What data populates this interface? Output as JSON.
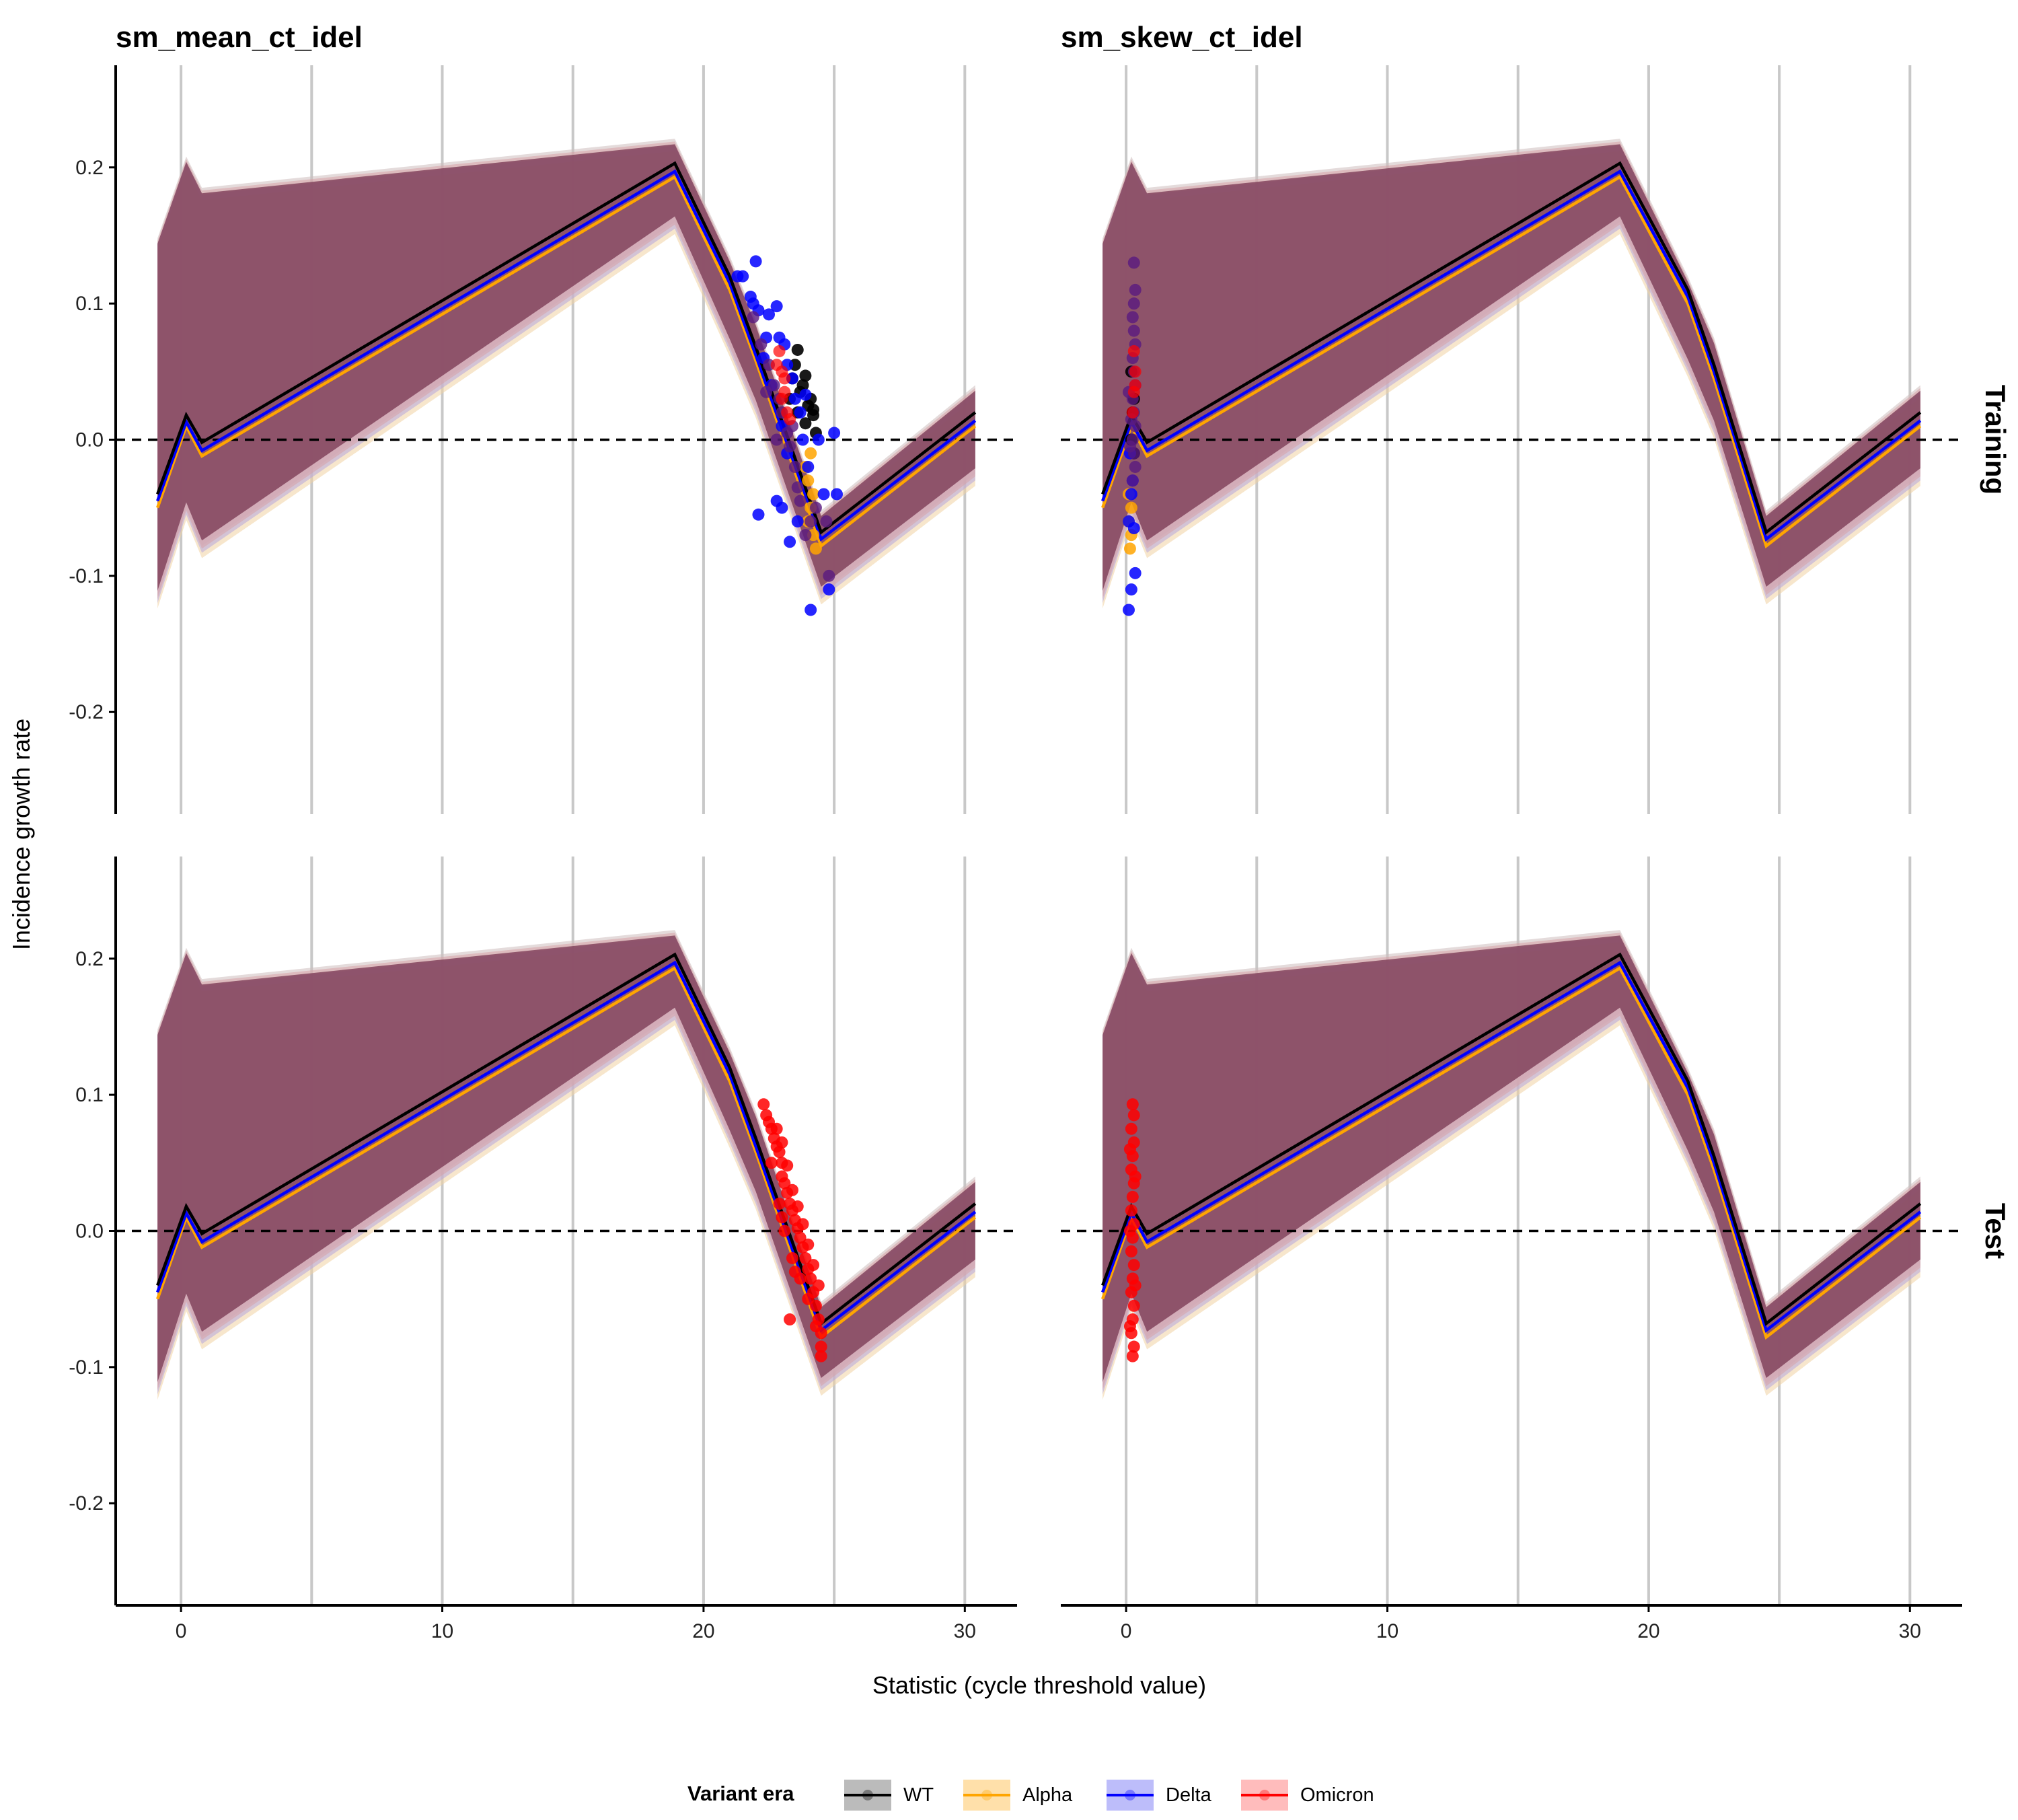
{
  "chart_data": {
    "type": "line",
    "panel_titles": [
      "sm_mean_ct_idel",
      "sm_skew_ct_idel"
    ],
    "row_strips": [
      "Training",
      "Test"
    ],
    "xlabel": "Statistic (cycle threshold value)",
    "ylabel": "Incidence growth rate",
    "xlim": [
      -2.5,
      32
    ],
    "ylim": [
      -0.275,
      0.275
    ],
    "x_ticks": [
      0,
      10,
      20,
      30
    ],
    "x_tick_labels": [
      "0",
      "10",
      "20",
      "30"
    ],
    "y_ticks": [
      -0.2,
      -0.1,
      0.0,
      0.1,
      0.2
    ],
    "y_tick_labels": [
      "-0.2",
      "-0.1",
      "0.0",
      "0.1",
      "0.2"
    ],
    "vertical_gridlines": [
      0,
      5,
      10,
      15,
      20,
      25,
      30
    ],
    "reference_line_y": 0,
    "grid": "vertical lines only",
    "legend_position": "bottom",
    "legend": {
      "title": "Variant era",
      "entries": [
        {
          "name": "WT",
          "color": "#000000"
        },
        {
          "name": "Alpha",
          "color": "#FFA500"
        },
        {
          "name": "Delta",
          "color": "#0000FF"
        },
        {
          "name": "Omicron",
          "color": "#FF0000"
        }
      ]
    },
    "band_color": "#7B3A55",
    "series": [
      {
        "name": "WT",
        "color": "#000000",
        "mean": [
          [
            -0.9,
            -0.04
          ],
          [
            0.2,
            0.018
          ],
          [
            0.8,
            -0.002
          ],
          [
            18.9,
            0.203
          ],
          [
            21.0,
            0.12
          ],
          [
            22.0,
            0.068
          ],
          [
            24.5,
            -0.068
          ],
          [
            30.4,
            0.02
          ]
        ],
        "mean_skew": [
          [
            -0.9,
            -0.04
          ],
          [
            0.2,
            0.018
          ],
          [
            0.8,
            -0.002
          ],
          [
            18.9,
            0.203
          ],
          [
            21.5,
            0.11
          ],
          [
            22.5,
            0.055
          ],
          [
            24.5,
            -0.068
          ],
          [
            30.4,
            0.02
          ]
        ],
        "points_mean": [
          [
            23.6,
            0.066
          ],
          [
            23.9,
            0.047
          ],
          [
            24.1,
            0.03
          ],
          [
            24.2,
            0.018
          ],
          [
            24.3,
            0.005
          ],
          [
            23.5,
            0.055
          ],
          [
            23.8,
            0.04
          ],
          [
            24.0,
            0.025
          ],
          [
            23.7,
            0.035
          ],
          [
            23.4,
            0.045
          ],
          [
            23.9,
            0.012
          ],
          [
            24.2,
            0.022
          ],
          [
            23.3,
            0.03
          ],
          [
            23.6,
            0.02
          ]
        ],
        "points_skew": [
          [
            0.2,
            0.05
          ],
          [
            0.25,
            0.02
          ],
          [
            0.3,
            -0.01
          ],
          [
            0.2,
            0.0
          ],
          [
            0.3,
            0.03
          ]
        ]
      },
      {
        "name": "Alpha",
        "color": "#FFA500",
        "mean": [
          [
            -0.9,
            -0.05
          ],
          [
            0.2,
            0.01
          ],
          [
            0.8,
            -0.012
          ],
          [
            18.9,
            0.193
          ],
          [
            21.0,
            0.11
          ],
          [
            22.0,
            0.058
          ],
          [
            24.5,
            -0.078
          ],
          [
            30.4,
            0.01
          ]
        ],
        "mean_skew": [
          [
            -0.9,
            -0.05
          ],
          [
            0.2,
            0.01
          ],
          [
            0.8,
            -0.012
          ],
          [
            18.9,
            0.193
          ],
          [
            21.5,
            0.1
          ],
          [
            22.5,
            0.045
          ],
          [
            24.5,
            -0.078
          ],
          [
            30.4,
            0.01
          ]
        ],
        "points_mean": [
          [
            24.0,
            -0.03
          ],
          [
            24.1,
            -0.05
          ],
          [
            24.2,
            -0.07
          ],
          [
            24.3,
            -0.08
          ],
          [
            24.0,
            -0.06
          ],
          [
            24.2,
            -0.04
          ],
          [
            23.9,
            -0.02
          ],
          [
            24.1,
            -0.01
          ]
        ],
        "points_skew": [
          [
            0.1,
            -0.06
          ],
          [
            0.2,
            -0.07
          ],
          [
            0.15,
            -0.08
          ],
          [
            0.2,
            -0.05
          ],
          [
            0.1,
            -0.04
          ]
        ]
      },
      {
        "name": "Delta",
        "color": "#0000FF",
        "mean": [
          [
            -0.9,
            -0.045
          ],
          [
            0.2,
            0.013
          ],
          [
            0.8,
            -0.008
          ],
          [
            18.9,
            0.197
          ],
          [
            21.0,
            0.115
          ],
          [
            22.0,
            0.062
          ],
          [
            24.5,
            -0.073
          ],
          [
            30.4,
            0.014
          ]
        ],
        "mean_skew": [
          [
            -0.9,
            -0.045
          ],
          [
            0.2,
            0.013
          ],
          [
            0.8,
            -0.008
          ],
          [
            18.9,
            0.197
          ],
          [
            21.5,
            0.105
          ],
          [
            22.5,
            0.05
          ],
          [
            24.5,
            -0.073
          ],
          [
            30.4,
            0.014
          ]
        ],
        "points_mean": [
          [
            21.3,
            0.12
          ],
          [
            21.5,
            0.12
          ],
          [
            21.8,
            0.105
          ],
          [
            21.9,
            0.1
          ],
          [
            22.0,
            0.131
          ],
          [
            22.1,
            0.095
          ],
          [
            22.4,
            0.075
          ],
          [
            22.5,
            0.092
          ],
          [
            22.8,
            0.098
          ],
          [
            22.9,
            0.075
          ],
          [
            23.1,
            0.07
          ],
          [
            23.2,
            0.055
          ],
          [
            23.4,
            0.045
          ],
          [
            23.5,
            0.03
          ],
          [
            23.7,
            0.02
          ],
          [
            23.9,
            0.033
          ],
          [
            24.0,
            -0.02
          ],
          [
            24.1,
            -0.125
          ],
          [
            24.6,
            -0.04
          ],
          [
            24.8,
            -0.11
          ],
          [
            25.0,
            0.005
          ],
          [
            25.1,
            -0.04
          ],
          [
            22.1,
            -0.055
          ],
          [
            22.8,
            -0.045
          ],
          [
            23.0,
            -0.05
          ],
          [
            23.3,
            -0.075
          ],
          [
            23.6,
            -0.06
          ],
          [
            24.4,
            0.0
          ],
          [
            22.6,
            0.04
          ],
          [
            23.0,
            0.01
          ],
          [
            23.8,
            0.0
          ],
          [
            22.3,
            0.06
          ],
          [
            23.2,
            -0.01
          ]
        ],
        "points_skew": [
          [
            0.1,
            -0.125
          ],
          [
            0.2,
            -0.11
          ],
          [
            0.35,
            -0.098
          ],
          [
            0.1,
            -0.06
          ],
          [
            0.2,
            -0.04
          ],
          [
            0.3,
            -0.065
          ],
          [
            0.25,
            -0.03
          ],
          [
            0.15,
            -0.01
          ]
        ]
      },
      {
        "name": "Omicron",
        "color": "#FF0000",
        "mean": [],
        "mean_skew": [],
        "points_mean": [
          [
            22.9,
            0.065
          ],
          [
            23.0,
            0.05
          ],
          [
            23.1,
            0.035
          ],
          [
            23.2,
            0.02
          ],
          [
            23.0,
            0.03
          ],
          [
            23.3,
            0.015
          ],
          [
            22.8,
            0.055
          ],
          [
            23.1,
            0.045
          ]
        ],
        "points_skew": [
          [
            0.3,
            0.065
          ],
          [
            0.35,
            0.05
          ],
          [
            0.3,
            0.035
          ],
          [
            0.25,
            0.02
          ],
          [
            0.35,
            0.04
          ]
        ],
        "points_mean_test": [
          [
            22.3,
            0.093
          ],
          [
            22.4,
            0.085
          ],
          [
            22.5,
            0.08
          ],
          [
            22.6,
            0.075
          ],
          [
            22.7,
            0.068
          ],
          [
            22.8,
            0.062
          ],
          [
            22.9,
            0.058
          ],
          [
            23.0,
            0.05
          ],
          [
            23.0,
            0.04
          ],
          [
            23.1,
            0.035
          ],
          [
            23.2,
            0.028
          ],
          [
            23.3,
            0.02
          ],
          [
            23.4,
            0.015
          ],
          [
            23.5,
            0.008
          ],
          [
            23.6,
            0.002
          ],
          [
            23.7,
            -0.005
          ],
          [
            23.8,
            -0.012
          ],
          [
            23.9,
            -0.02
          ],
          [
            24.0,
            -0.028
          ],
          [
            24.1,
            -0.035
          ],
          [
            24.2,
            -0.045
          ],
          [
            24.3,
            -0.055
          ],
          [
            24.4,
            -0.065
          ],
          [
            24.5,
            -0.075
          ],
          [
            24.5,
            -0.085
          ],
          [
            24.5,
            -0.092
          ],
          [
            23.3,
            -0.065
          ],
          [
            22.8,
            0.075
          ],
          [
            23.0,
            0.065
          ],
          [
            23.2,
            0.048
          ],
          [
            23.4,
            0.03
          ],
          [
            23.6,
            0.018
          ],
          [
            23.8,
            0.005
          ],
          [
            24.0,
            -0.01
          ],
          [
            24.2,
            -0.025
          ],
          [
            24.4,
            -0.04
          ],
          [
            22.6,
            0.05
          ],
          [
            22.9,
            0.02
          ],
          [
            23.1,
            0.0
          ],
          [
            23.4,
            -0.02
          ],
          [
            23.7,
            -0.035
          ],
          [
            24.0,
            -0.05
          ],
          [
            24.3,
            -0.07
          ],
          [
            23.0,
            0.01
          ],
          [
            23.5,
            -0.03
          ]
        ],
        "points_skew_test": [
          [
            0.25,
            0.093
          ],
          [
            0.3,
            0.085
          ],
          [
            0.2,
            0.075
          ],
          [
            0.3,
            0.065
          ],
          [
            0.25,
            0.055
          ],
          [
            0.2,
            0.045
          ],
          [
            0.3,
            0.035
          ],
          [
            0.25,
            0.025
          ],
          [
            0.2,
            0.015
          ],
          [
            0.3,
            0.005
          ],
          [
            0.25,
            -0.005
          ],
          [
            0.2,
            -0.015
          ],
          [
            0.3,
            -0.025
          ],
          [
            0.25,
            -0.035
          ],
          [
            0.2,
            -0.045
          ],
          [
            0.3,
            -0.055
          ],
          [
            0.25,
            -0.065
          ],
          [
            0.2,
            -0.075
          ],
          [
            0.3,
            -0.085
          ],
          [
            0.25,
            -0.092
          ],
          [
            0.15,
            0.06
          ],
          [
            0.35,
            0.04
          ],
          [
            0.15,
            0.0
          ],
          [
            0.35,
            -0.04
          ],
          [
            0.15,
            -0.07
          ]
        ]
      }
    ],
    "training_purple_points_mean": [
      [
        21.9,
        0.09
      ],
      [
        22.2,
        0.07
      ],
      [
        22.5,
        0.055
      ],
      [
        22.7,
        0.04
      ],
      [
        22.9,
        0.03
      ],
      [
        23.0,
        0.02
      ],
      [
        23.2,
        0.005
      ],
      [
        23.3,
        -0.005
      ],
      [
        23.5,
        -0.02
      ],
      [
        23.7,
        -0.045
      ],
      [
        24.1,
        -0.06
      ],
      [
        24.7,
        -0.06
      ],
      [
        24.8,
        -0.1
      ],
      [
        22.4,
        0.035
      ],
      [
        22.8,
        0.0
      ],
      [
        23.4,
        0.01
      ],
      [
        23.6,
        -0.035
      ],
      [
        24.3,
        -0.05
      ],
      [
        23.9,
        -0.07
      ]
    ],
    "training_purple_points_skew": [
      [
        0.3,
        0.13
      ],
      [
        0.35,
        0.11
      ],
      [
        0.3,
        0.1
      ],
      [
        0.25,
        0.09
      ],
      [
        0.3,
        0.08
      ],
      [
        0.35,
        0.07
      ],
      [
        0.25,
        0.06
      ],
      [
        0.3,
        0.05
      ],
      [
        0.35,
        0.04
      ],
      [
        0.25,
        0.03
      ],
      [
        0.3,
        0.02
      ],
      [
        0.35,
        0.01
      ],
      [
        0.25,
        0.0
      ],
      [
        0.3,
        -0.01
      ],
      [
        0.35,
        -0.02
      ],
      [
        0.25,
        -0.03
      ],
      [
        0.1,
        0.035
      ],
      [
        0.2,
        0.015
      ],
      [
        0.15,
        -0.005
      ]
    ]
  }
}
